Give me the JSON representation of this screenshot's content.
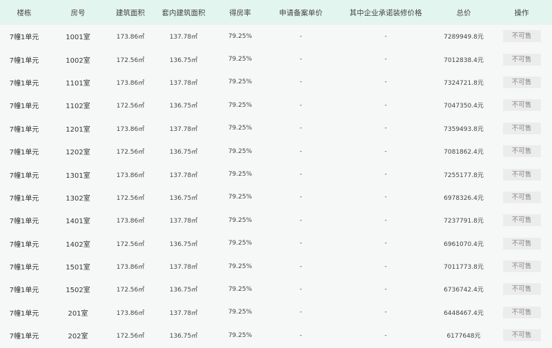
{
  "headers": [
    "楼栋",
    "房号",
    "建筑面积",
    "套内建筑面积",
    "得房率",
    "申请备案单价",
    "其中企业承诺装修价格",
    "总价",
    "操作"
  ],
  "rows": [
    {
      "building": "7幢1单元",
      "room": "1001室",
      "area": "173.86㎡",
      "inner": "137.78㎡",
      "rate": "79.25%",
      "price": "-",
      "deco": "-",
      "total": "7289949.8元",
      "action": "不可售"
    },
    {
      "building": "7幢1单元",
      "room": "1002室",
      "area": "172.56㎡",
      "inner": "136.75㎡",
      "rate": "79.25%",
      "price": "-",
      "deco": "-",
      "total": "7012838.4元",
      "action": "不可售"
    },
    {
      "building": "7幢1单元",
      "room": "1101室",
      "area": "173.86㎡",
      "inner": "137.78㎡",
      "rate": "79.25%",
      "price": "-",
      "deco": "-",
      "total": "7324721.8元",
      "action": "不可售"
    },
    {
      "building": "7幢1单元",
      "room": "1102室",
      "area": "172.56㎡",
      "inner": "136.75㎡",
      "rate": "79.25%",
      "price": "-",
      "deco": "-",
      "total": "7047350.4元",
      "action": "不可售"
    },
    {
      "building": "7幢1单元",
      "room": "1201室",
      "area": "173.86㎡",
      "inner": "137.78㎡",
      "rate": "79.25%",
      "price": "-",
      "deco": "-",
      "total": "7359493.8元",
      "action": "不可售"
    },
    {
      "building": "7幢1单元",
      "room": "1202室",
      "area": "172.56㎡",
      "inner": "136.75㎡",
      "rate": "79.25%",
      "price": "-",
      "deco": "-",
      "total": "7081862.4元",
      "action": "不可售"
    },
    {
      "building": "7幢1单元",
      "room": "1301室",
      "area": "173.86㎡",
      "inner": "137.78㎡",
      "rate": "79.25%",
      "price": "-",
      "deco": "-",
      "total": "7255177.8元",
      "action": "不可售"
    },
    {
      "building": "7幢1单元",
      "room": "1302室",
      "area": "172.56㎡",
      "inner": "136.75㎡",
      "rate": "79.25%",
      "price": "-",
      "deco": "-",
      "total": "6978326.4元",
      "action": "不可售"
    },
    {
      "building": "7幢1单元",
      "room": "1401室",
      "area": "173.86㎡",
      "inner": "137.78㎡",
      "rate": "79.25%",
      "price": "-",
      "deco": "-",
      "total": "7237791.8元",
      "action": "不可售"
    },
    {
      "building": "7幢1单元",
      "room": "1402室",
      "area": "172.56㎡",
      "inner": "136.75㎡",
      "rate": "79.25%",
      "price": "-",
      "deco": "-",
      "total": "6961070.4元",
      "action": "不可售"
    },
    {
      "building": "7幢1单元",
      "room": "1501室",
      "area": "173.86㎡",
      "inner": "137.78㎡",
      "rate": "79.25%",
      "price": "-",
      "deco": "-",
      "total": "7011773.8元",
      "action": "不可售"
    },
    {
      "building": "7幢1单元",
      "room": "1502室",
      "area": "172.56㎡",
      "inner": "136.75㎡",
      "rate": "79.25%",
      "price": "-",
      "deco": "-",
      "total": "6736742.4元",
      "action": "不可售"
    },
    {
      "building": "7幢1单元",
      "room": "201室",
      "area": "173.86㎡",
      "inner": "137.78㎡",
      "rate": "79.25%",
      "price": "-",
      "deco": "-",
      "total": "6448467.4元",
      "action": "不可售"
    },
    {
      "building": "7幢1单元",
      "room": "202室",
      "area": "172.56㎡",
      "inner": "136.75㎡",
      "rate": "79.25%",
      "price": "-",
      "deco": "-",
      "total": "6177648元",
      "action": "不可售"
    }
  ]
}
